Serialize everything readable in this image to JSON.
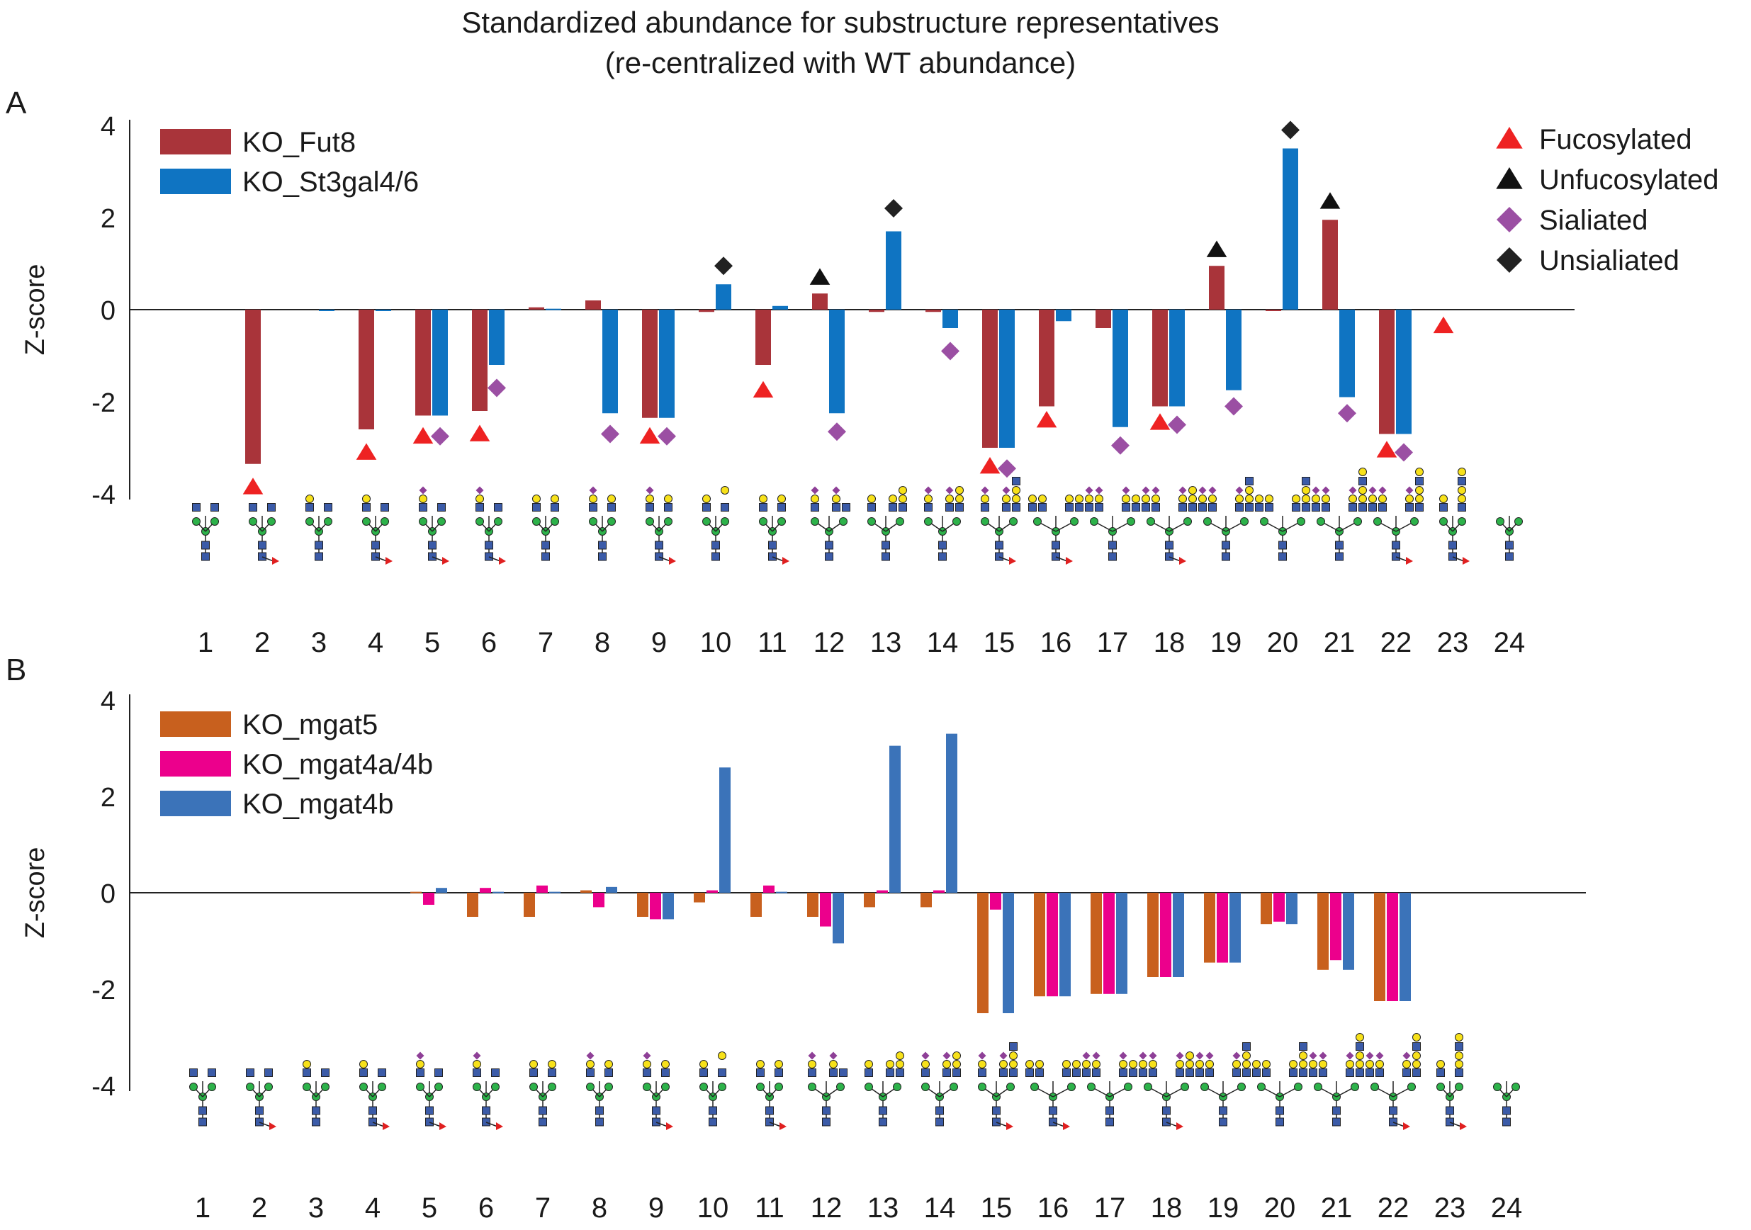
{
  "title_line1": "Standardized abundance for substructure representatives",
  "title_line2": "(re-centralized with WT abundance)",
  "colors": {
    "KO_Fut8": "#a9343a",
    "KO_St3gal4/6": "#0f74c2",
    "KO_mgat5": "#c8601e",
    "KO_mgat4a/4b": "#ec008c",
    "KO_mgat4b": "#3b73b9",
    "fucosylated": "#ee2222",
    "unfucosylated": "#111111",
    "sialiated": "#9b4fa3",
    "unsialiated": "#222222",
    "glycan_blue": "#3b5ba8",
    "glycan_green": "#2db24a",
    "glycan_yellow": "#f7e11a",
    "glycan_purple": "#8e3f97",
    "glycan_red": "#e02020"
  },
  "chart_data": [
    {
      "type": "bar",
      "panel_label": "A",
      "ylabel": "Z-score",
      "ylim": [
        -4,
        4
      ],
      "yticks": [
        4,
        2,
        0,
        -2,
        -4
      ],
      "categories": [
        "1",
        "2",
        "3",
        "4",
        "5",
        "6",
        "7",
        "8",
        "9",
        "10",
        "11",
        "12",
        "13",
        "14",
        "15",
        "16",
        "17",
        "18",
        "19",
        "20",
        "21",
        "22",
        "23",
        "24"
      ],
      "series": [
        {
          "name": "KO_Fut8",
          "values": [
            0,
            -3.35,
            0,
            -2.6,
            -2.3,
            -2.2,
            0.05,
            0.2,
            -2.35,
            -0.05,
            -1.2,
            0.35,
            -0.05,
            -0.05,
            -3.0,
            -2.1,
            -0.4,
            -2.1,
            0.95,
            -0.02,
            1.95,
            -2.7,
            0,
            0
          ]
        },
        {
          "name": "KO_St3gal4/6",
          "values": [
            0,
            0,
            -0.02,
            -0.02,
            -2.3,
            -1.2,
            0.02,
            -2.25,
            -2.35,
            0.55,
            0.08,
            -2.25,
            1.7,
            -0.4,
            -3.0,
            -0.25,
            -2.55,
            -2.1,
            -1.75,
            3.5,
            -1.9,
            -2.7,
            0,
            0
          ]
        }
      ],
      "legend": [
        "KO_Fut8",
        "KO_St3gal4/6"
      ],
      "legend_position": "top-left",
      "marker_legend": [
        {
          "label": "Fucosylated",
          "shape": "triangle",
          "color_key": "fucosylated"
        },
        {
          "label": "Unfucosylated",
          "shape": "triangle",
          "color_key": "unfucosylated"
        },
        {
          "label": "Sialiated",
          "shape": "diamond",
          "color_key": "sialiated"
        },
        {
          "label": "Unsialiated",
          "shape": "diamond",
          "color_key": "unsialiated"
        }
      ],
      "marker_legend_position": "top-right",
      "markers": [
        {
          "cat": "2",
          "series": 0,
          "shape": "triangle",
          "color_key": "fucosylated",
          "y": -3.85
        },
        {
          "cat": "4",
          "series": 0,
          "shape": "triangle",
          "color_key": "fucosylated",
          "y": -3.1
        },
        {
          "cat": "5",
          "series": 0,
          "shape": "triangle",
          "color_key": "fucosylated",
          "y": -2.75
        },
        {
          "cat": "5",
          "series": 1,
          "shape": "diamond",
          "color_key": "sialiated",
          "y": -2.75
        },
        {
          "cat": "6",
          "series": 0,
          "shape": "triangle",
          "color_key": "fucosylated",
          "y": -2.7
        },
        {
          "cat": "6",
          "series": 1,
          "shape": "diamond",
          "color_key": "sialiated",
          "y": -1.7
        },
        {
          "cat": "8",
          "series": 1,
          "shape": "diamond",
          "color_key": "sialiated",
          "y": -2.7
        },
        {
          "cat": "9",
          "series": 0,
          "shape": "triangle",
          "color_key": "fucosylated",
          "y": -2.75
        },
        {
          "cat": "9",
          "series": 1,
          "shape": "diamond",
          "color_key": "sialiated",
          "y": -2.75
        },
        {
          "cat": "10",
          "series": 1,
          "shape": "diamond",
          "color_key": "unsialiated",
          "y": 0.95
        },
        {
          "cat": "11",
          "series": 0,
          "shape": "triangle",
          "color_key": "fucosylated",
          "y": -1.75
        },
        {
          "cat": "12",
          "series": 0,
          "shape": "triangle",
          "color_key": "unfucosylated",
          "y": 0.7
        },
        {
          "cat": "12",
          "series": 1,
          "shape": "diamond",
          "color_key": "sialiated",
          "y": -2.65
        },
        {
          "cat": "13",
          "series": 1,
          "shape": "diamond",
          "color_key": "unsialiated",
          "y": 2.2
        },
        {
          "cat": "14",
          "series": 1,
          "shape": "diamond",
          "color_key": "sialiated",
          "y": -0.9
        },
        {
          "cat": "15",
          "series": 0,
          "shape": "triangle",
          "color_key": "fucosylated",
          "y": -3.4
        },
        {
          "cat": "15",
          "series": 1,
          "shape": "diamond",
          "color_key": "sialiated",
          "y": -3.45
        },
        {
          "cat": "16",
          "series": 0,
          "shape": "triangle",
          "color_key": "fucosylated",
          "y": -2.4
        },
        {
          "cat": "17",
          "series": 1,
          "shape": "diamond",
          "color_key": "sialiated",
          "y": -2.95
        },
        {
          "cat": "18",
          "series": 0,
          "shape": "triangle",
          "color_key": "fucosylated",
          "y": -2.45
        },
        {
          "cat": "18",
          "series": 1,
          "shape": "diamond",
          "color_key": "sialiated",
          "y": -2.5
        },
        {
          "cat": "19",
          "series": 0,
          "shape": "triangle",
          "color_key": "unfucosylated",
          "y": 1.3
        },
        {
          "cat": "19",
          "series": 1,
          "shape": "diamond",
          "color_key": "sialiated",
          "y": -2.1
        },
        {
          "cat": "20",
          "series": 1,
          "shape": "diamond",
          "color_key": "unsialiated",
          "y": 3.9
        },
        {
          "cat": "21",
          "series": 0,
          "shape": "triangle",
          "color_key": "unfucosylated",
          "y": 2.35
        },
        {
          "cat": "21",
          "series": 1,
          "shape": "diamond",
          "color_key": "sialiated",
          "y": -2.25
        },
        {
          "cat": "22",
          "series": 0,
          "shape": "triangle",
          "color_key": "fucosylated",
          "y": -3.05
        },
        {
          "cat": "22",
          "series": 1,
          "shape": "diamond",
          "color_key": "sialiated",
          "y": -3.1
        },
        {
          "cat": "23",
          "series": 0,
          "shape": "triangle",
          "color_key": "fucosylated",
          "y": -0.35
        }
      ]
    },
    {
      "type": "bar",
      "panel_label": "B",
      "ylabel": "Z-score",
      "ylim": [
        -4,
        4
      ],
      "yticks": [
        4,
        2,
        0,
        -2,
        -4
      ],
      "categories": [
        "1",
        "2",
        "3",
        "4",
        "5",
        "6",
        "7",
        "8",
        "9",
        "10",
        "11",
        "12",
        "13",
        "14",
        "15",
        "16",
        "17",
        "18",
        "19",
        "20",
        "21",
        "22",
        "23",
        "24"
      ],
      "series": [
        {
          "name": "KO_mgat5",
          "values": [
            0,
            0,
            0,
            0,
            0.02,
            -0.5,
            -0.5,
            0.05,
            -0.5,
            -0.2,
            -0.5,
            -0.5,
            -0.3,
            -0.3,
            -2.5,
            -2.15,
            -2.1,
            -1.75,
            -1.45,
            -0.65,
            -1.6,
            -2.25,
            0,
            0
          ]
        },
        {
          "name": "KO_mgat4a/4b",
          "values": [
            0,
            0,
            0,
            0,
            -0.25,
            0.1,
            0.15,
            -0.3,
            -0.55,
            0.05,
            0.15,
            -0.7,
            0.05,
            0.05,
            -0.35,
            -2.15,
            -2.1,
            -1.75,
            -1.45,
            -0.6,
            -1.4,
            -2.25,
            0,
            0
          ]
        },
        {
          "name": "KO_mgat4b",
          "values": [
            0,
            0,
            0,
            0,
            0.1,
            0.02,
            0.02,
            0.12,
            -0.55,
            2.6,
            0.02,
            -1.05,
            3.05,
            3.3,
            -2.5,
            -2.15,
            -2.1,
            -1.75,
            -1.45,
            -0.65,
            -1.6,
            -2.25,
            0,
            0
          ]
        }
      ],
      "legend": [
        "KO_mgat5",
        "KO_mgat4a/4b",
        "KO_mgat4b"
      ],
      "legend_position": "top-left"
    }
  ]
}
